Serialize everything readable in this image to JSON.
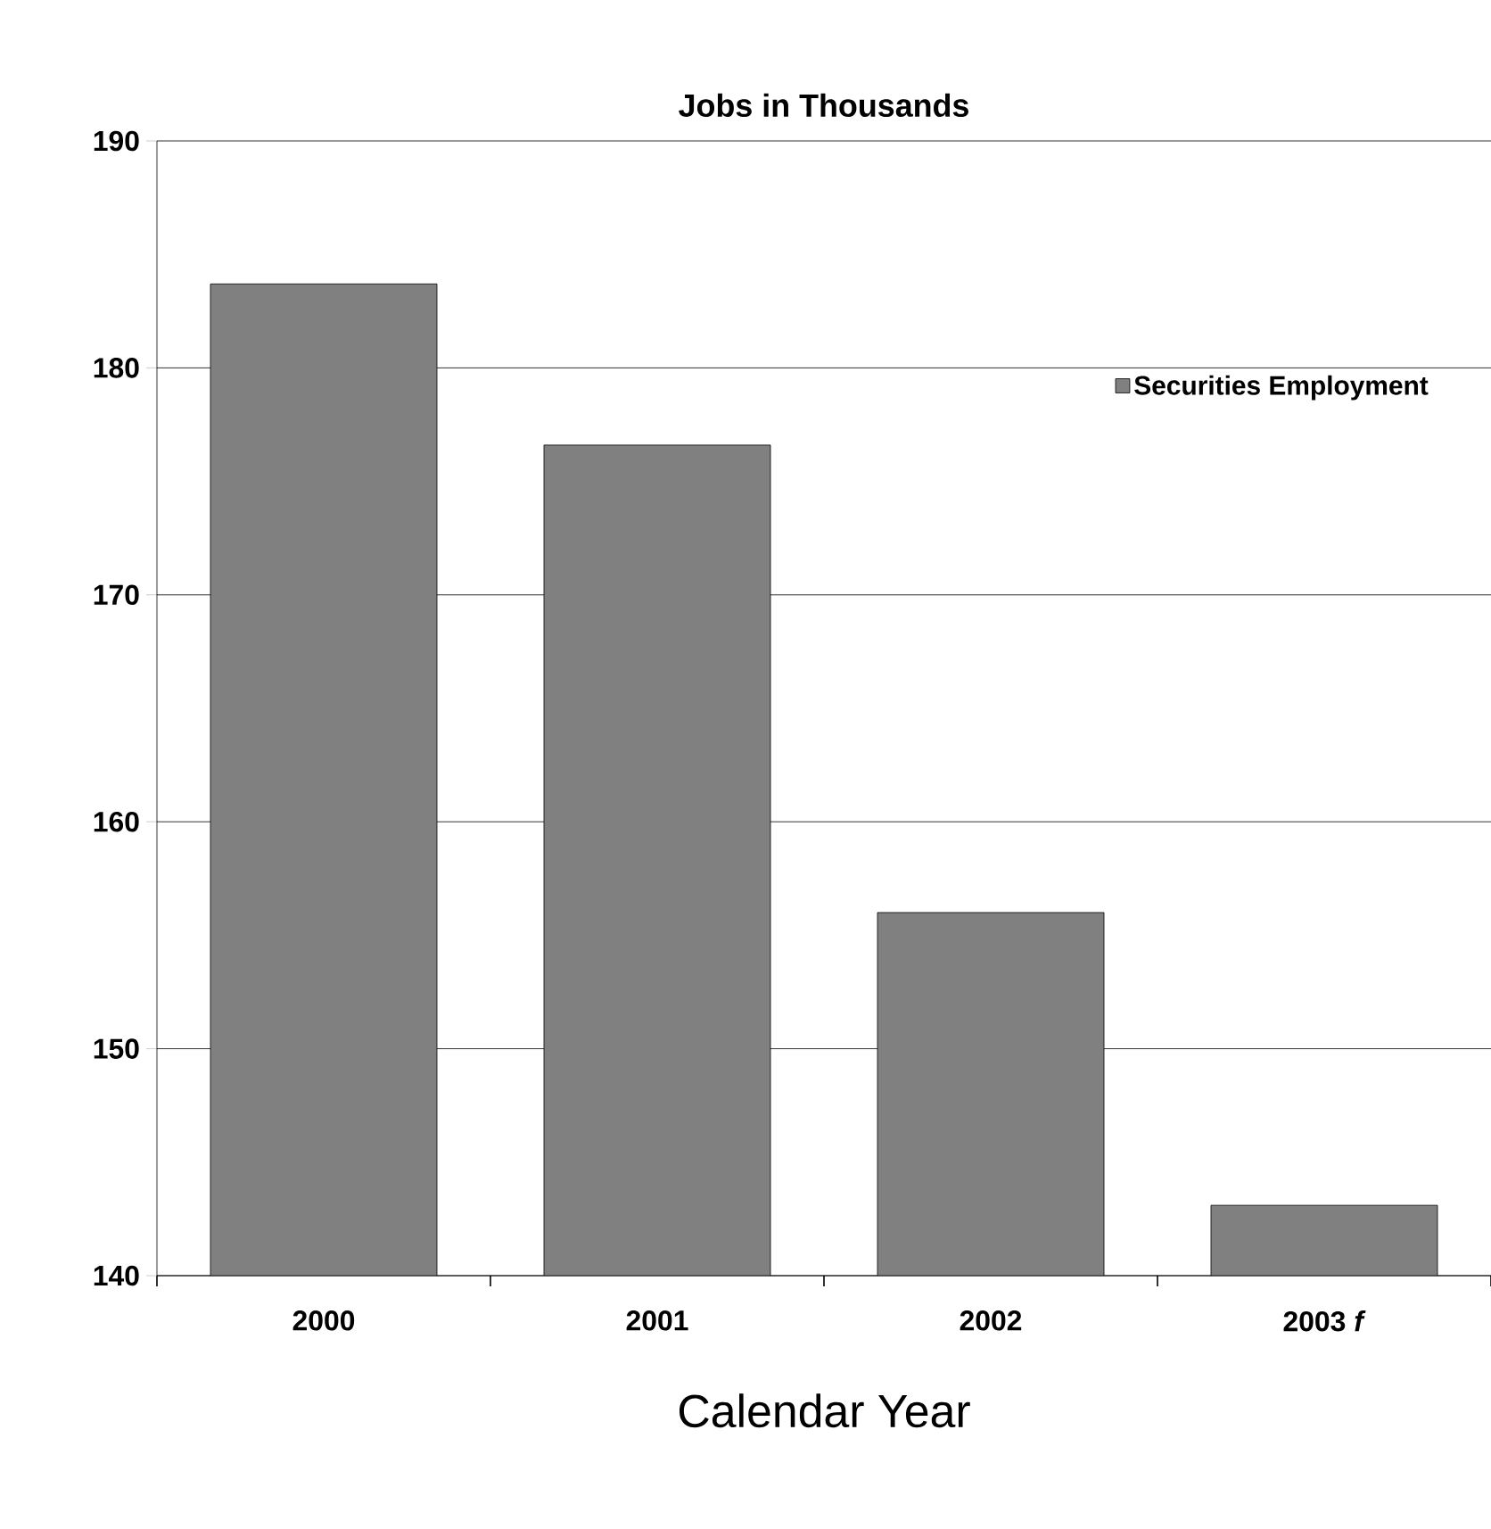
{
  "chart_data": {
    "type": "bar",
    "title": "Jobs in Thousands",
    "xlabel": "Calendar Year",
    "categories": [
      "2000",
      "2001",
      "2002",
      "2003 *f*"
    ],
    "series": [
      {
        "name": "Securities Employment",
        "color": "#808080",
        "values": [
          183.7,
          176.6,
          156.0,
          143.1
        ]
      }
    ],
    "ylim": [
      140,
      190
    ],
    "yticks": [
      140,
      150,
      160,
      170,
      180,
      190
    ],
    "grid": "y",
    "legend": "top right"
  }
}
